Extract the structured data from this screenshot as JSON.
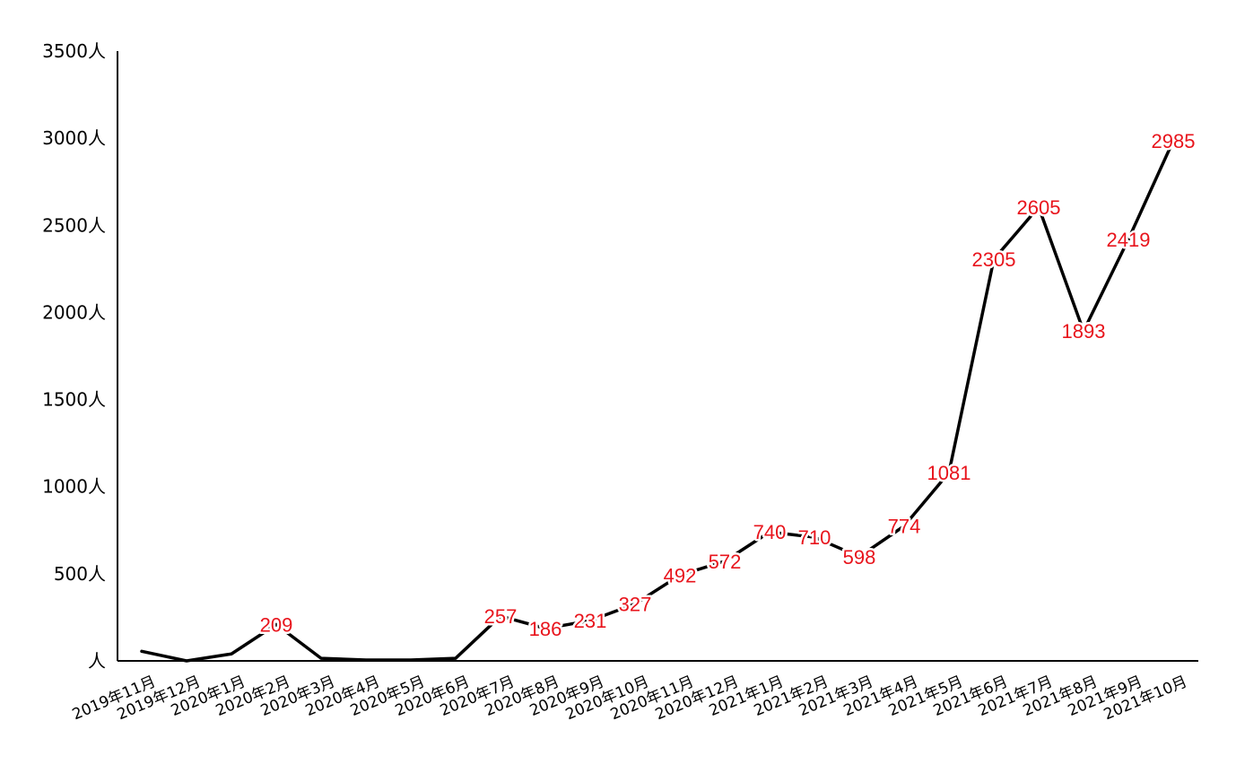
{
  "chart_data": {
    "type": "line",
    "title": "",
    "xlabel": "",
    "ylabel": "",
    "ylim": [
      0,
      3500
    ],
    "y_ticks": [
      {
        "value": 0,
        "label": "人"
      },
      {
        "value": 500,
        "label": "500人"
      },
      {
        "value": 1000,
        "label": "1000人"
      },
      {
        "value": 1500,
        "label": "1500人"
      },
      {
        "value": 2000,
        "label": "2000人"
      },
      {
        "value": 2500,
        "label": "2500人"
      },
      {
        "value": 3000,
        "label": "3000人"
      },
      {
        "value": 3500,
        "label": "3500人"
      }
    ],
    "categories": [
      "2019年11月",
      "2019年12月",
      "2020年1月",
      "2020年2月",
      "2020年3月",
      "2020年4月",
      "2020年5月",
      "2020年6月",
      "2020年7月",
      "2020年8月",
      "2020年9月",
      "2020年10月",
      "2020年11月",
      "2020年12月",
      "2021年1月",
      "2021年2月",
      "2021年3月",
      "2021年4月",
      "2021年5月",
      "2021年6月",
      "2021年7月",
      "2021年8月",
      "2021年9月",
      "2021年10月"
    ],
    "series": [
      {
        "values": [
          55,
          0,
          40,
          209,
          15,
          5,
          5,
          15,
          257,
          186,
          231,
          327,
          492,
          572,
          740,
          710,
          598,
          774,
          1081,
          2305,
          2605,
          1893,
          2419,
          2985
        ],
        "data_labels": [
          null,
          null,
          null,
          "209",
          null,
          null,
          null,
          null,
          "257",
          "186",
          "231",
          "327",
          "492",
          "572",
          "740",
          "710",
          "598",
          "774",
          "1081",
          "2305",
          "2605",
          "1893",
          "2419",
          "2985"
        ]
      }
    ],
    "grid": false,
    "legend": "none",
    "line_color": "#000000",
    "label_color": "#e8141c"
  }
}
